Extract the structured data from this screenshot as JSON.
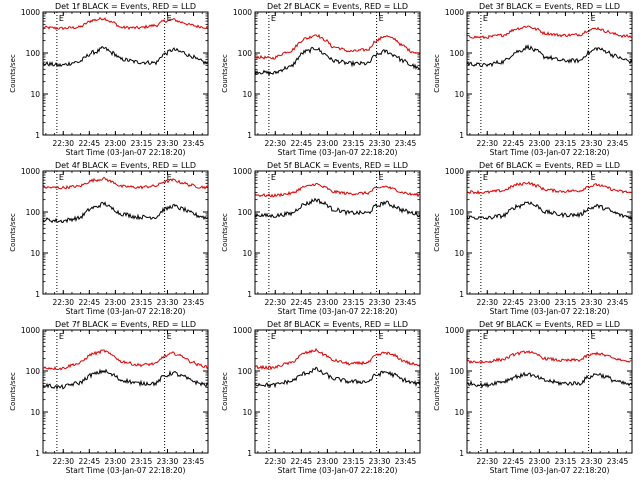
{
  "figure": {
    "ylabel": "Counts/sec",
    "xlabel": "Start Time (03-Jan-07 22:18:20)",
    "yticks": [
      "1",
      "10",
      "100",
      "1000"
    ],
    "xticks": [
      "22:30",
      "22:45",
      "23:00",
      "23:15",
      "23:30",
      "23:45"
    ],
    "marker_labels": [
      "E",
      "E"
    ],
    "colors": {
      "events": "#000000",
      "lld": "#e00000",
      "background": "#ffffff"
    }
  },
  "chart_data": [
    {
      "type": "line",
      "title": "Det 1f BLACK = Events, RED = LLD",
      "xlabel": "Start Time (03-Jan-07 22:18:20)",
      "ylabel": "Counts/sec",
      "x_unit": "minutes after 22:18:20",
      "xlim": [
        0,
        95
      ],
      "ylim": [
        1,
        1000
      ],
      "yscale": "log",
      "markers_x": [
        8,
        70
      ],
      "x": [
        0,
        10,
        20,
        30,
        35,
        40,
        45,
        55,
        65,
        70,
        75,
        80,
        85,
        90,
        95
      ],
      "series": [
        {
          "name": "LLD",
          "color": "#e00000",
          "values": [
            420,
            400,
            420,
            640,
            700,
            560,
            420,
            410,
            470,
            600,
            650,
            560,
            480,
            440,
            420
          ]
        },
        {
          "name": "Events",
          "color": "#000000",
          "values": [
            55,
            50,
            60,
            105,
            130,
            100,
            70,
            60,
            58,
            95,
            120,
            105,
            85,
            65,
            55
          ]
        }
      ]
    },
    {
      "type": "line",
      "title": "Det 2f BLACK = Events, RED = LLD",
      "xlabel": "Start Time (03-Jan-07 22:18:20)",
      "ylabel": "Counts/sec",
      "xlim": [
        0,
        95
      ],
      "ylim": [
        1,
        1000
      ],
      "yscale": "log",
      "markers_x": [
        8,
        70
      ],
      "x": [
        0,
        10,
        20,
        30,
        35,
        40,
        45,
        55,
        65,
        70,
        75,
        80,
        85,
        90,
        95
      ],
      "series": [
        {
          "name": "LLD",
          "color": "#e00000",
          "values": [
            80,
            75,
            110,
            230,
            280,
            210,
            140,
            110,
            120,
            200,
            260,
            220,
            150,
            110,
            95
          ]
        },
        {
          "name": "Events",
          "color": "#000000",
          "values": [
            35,
            32,
            45,
            110,
            130,
            95,
            65,
            55,
            55,
            90,
            110,
            90,
            65,
            50,
            40
          ]
        }
      ]
    },
    {
      "type": "line",
      "title": "Det 3f BLACK = Events, RED = LLD",
      "xlabel": "Start Time (03-Jan-07 22:18:20)",
      "ylabel": "Counts/sec",
      "xlim": [
        0,
        95
      ],
      "ylim": [
        1,
        1000
      ],
      "yscale": "log",
      "markers_x": [
        8,
        70
      ],
      "x": [
        0,
        10,
        20,
        30,
        35,
        40,
        45,
        55,
        65,
        70,
        75,
        80,
        85,
        90,
        95
      ],
      "series": [
        {
          "name": "LLD",
          "color": "#e00000",
          "values": [
            250,
            240,
            270,
            400,
            450,
            380,
            300,
            270,
            280,
            360,
            400,
            340,
            290,
            260,
            250
          ]
        },
        {
          "name": "Events",
          "color": "#000000",
          "values": [
            55,
            50,
            60,
            110,
            140,
            110,
            80,
            65,
            65,
            100,
            130,
            110,
            85,
            70,
            60
          ]
        }
      ]
    },
    {
      "type": "line",
      "title": "Det 4f BLACK = Events, RED = LLD",
      "xlabel": "Start Time (03-Jan-07 22:18:20)",
      "ylabel": "Counts/sec",
      "xlim": [
        0,
        95
      ],
      "ylim": [
        1,
        1000
      ],
      "yscale": "log",
      "markers_x": [
        8,
        70
      ],
      "x": [
        0,
        10,
        20,
        30,
        35,
        40,
        45,
        55,
        65,
        70,
        75,
        80,
        85,
        90,
        95
      ],
      "series": [
        {
          "name": "LLD",
          "color": "#e00000",
          "values": [
            400,
            390,
            420,
            600,
            650,
            540,
            420,
            400,
            430,
            550,
            600,
            520,
            450,
            410,
            400
          ]
        },
        {
          "name": "Events",
          "color": "#000000",
          "values": [
            65,
            60,
            70,
            130,
            160,
            120,
            90,
            75,
            75,
            115,
            140,
            120,
            95,
            80,
            70
          ]
        }
      ]
    },
    {
      "type": "line",
      "title": "Det 5f BLACK = Events, RED = LLD",
      "xlabel": "Start Time (03-Jan-07 22:18:20)",
      "ylabel": "Counts/sec",
      "xlim": [
        0,
        95
      ],
      "ylim": [
        1,
        1000
      ],
      "yscale": "log",
      "markers_x": [
        8,
        70
      ],
      "x": [
        0,
        10,
        20,
        30,
        35,
        40,
        45,
        55,
        65,
        70,
        75,
        80,
        85,
        90,
        95
      ],
      "series": [
        {
          "name": "LLD",
          "color": "#e00000",
          "values": [
            260,
            250,
            280,
            420,
            480,
            400,
            310,
            280,
            290,
            380,
            420,
            360,
            300,
            270,
            260
          ]
        },
        {
          "name": "Events",
          "color": "#000000",
          "values": [
            85,
            80,
            90,
            160,
            200,
            160,
            115,
            95,
            95,
            140,
            170,
            140,
            110,
            95,
            85
          ]
        }
      ]
    },
    {
      "type": "line",
      "title": "Det 6f BLACK = Events, RED = LLD",
      "xlabel": "Start Time (03-Jan-07 22:18:20)",
      "ylabel": "Counts/sec",
      "xlim": [
        0,
        95
      ],
      "ylim": [
        1,
        1000
      ],
      "yscale": "log",
      "markers_x": [
        8,
        70
      ],
      "x": [
        0,
        10,
        20,
        30,
        35,
        40,
        45,
        55,
        65,
        70,
        75,
        80,
        85,
        90,
        95
      ],
      "series": [
        {
          "name": "LLD",
          "color": "#e00000",
          "values": [
            310,
            300,
            330,
            470,
            520,
            440,
            350,
            320,
            330,
            420,
            460,
            400,
            340,
            310,
            300
          ]
        },
        {
          "name": "Events",
          "color": "#000000",
          "values": [
            75,
            70,
            80,
            140,
            175,
            140,
            100,
            85,
            85,
            120,
            140,
            120,
            95,
            80,
            75
          ]
        }
      ]
    },
    {
      "type": "line",
      "title": "Det 7f BLACK = Events, RED = LLD",
      "xlabel": "Start Time (03-Jan-07 22:18:20)",
      "ylabel": "Counts/sec",
      "xlim": [
        0,
        95
      ],
      "ylim": [
        1,
        1000
      ],
      "yscale": "log",
      "markers_x": [
        8,
        70
      ],
      "x": [
        0,
        10,
        20,
        30,
        35,
        40,
        45,
        55,
        65,
        70,
        75,
        80,
        85,
        90,
        95
      ],
      "series": [
        {
          "name": "LLD",
          "color": "#e00000",
          "values": [
            120,
            115,
            150,
            270,
            310,
            240,
            170,
            140,
            150,
            230,
            270,
            230,
            170,
            140,
            125
          ]
        },
        {
          "name": "Events",
          "color": "#000000",
          "values": [
            45,
            40,
            50,
            85,
            100,
            80,
            60,
            50,
            50,
            75,
            90,
            75,
            60,
            50,
            45
          ]
        }
      ]
    },
    {
      "type": "line",
      "title": "Det 8f BLACK = Events, RED = LLD",
      "xlabel": "Start Time (03-Jan-07 22:18:20)",
      "ylabel": "Counts/sec",
      "xlim": [
        0,
        95
      ],
      "ylim": [
        1,
        1000
      ],
      "yscale": "log",
      "markers_x": [
        8,
        70
      ],
      "x": [
        0,
        10,
        20,
        30,
        35,
        40,
        45,
        55,
        65,
        70,
        75,
        80,
        85,
        90,
        95
      ],
      "series": [
        {
          "name": "LLD",
          "color": "#e00000",
          "values": [
            125,
            120,
            155,
            280,
            320,
            250,
            180,
            150,
            160,
            240,
            280,
            240,
            180,
            150,
            130
          ]
        },
        {
          "name": "Events",
          "color": "#000000",
          "values": [
            48,
            45,
            55,
            90,
            110,
            85,
            65,
            55,
            55,
            80,
            95,
            80,
            62,
            52,
            48
          ]
        }
      ]
    },
    {
      "type": "line",
      "title": "Det 9f BLACK = Events, RED = LLD",
      "xlabel": "Start Time (03-Jan-07 22:18:20)",
      "ylabel": "Counts/sec",
      "xlim": [
        0,
        95
      ],
      "ylim": [
        1,
        1000
      ],
      "yscale": "log",
      "markers_x": [
        8,
        70
      ],
      "x": [
        0,
        10,
        20,
        30,
        35,
        40,
        45,
        55,
        65,
        70,
        75,
        80,
        85,
        90,
        95
      ],
      "series": [
        {
          "name": "LLD",
          "color": "#e00000",
          "values": [
            170,
            165,
            190,
            270,
            300,
            250,
            200,
            180,
            185,
            240,
            270,
            240,
            200,
            180,
            170
          ]
        },
        {
          "name": "Events",
          "color": "#000000",
          "values": [
            50,
            45,
            55,
            75,
            85,
            70,
            58,
            50,
            50,
            70,
            85,
            72,
            58,
            50,
            45
          ]
        }
      ]
    }
  ]
}
